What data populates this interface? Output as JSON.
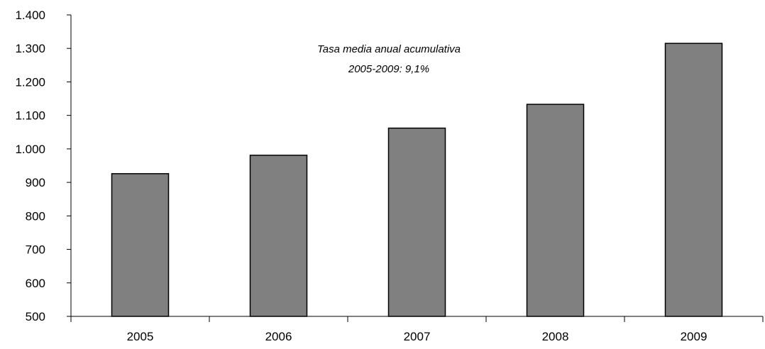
{
  "chart_data": {
    "type": "bar",
    "categories": [
      "2005",
      "2006",
      "2007",
      "2008",
      "2009"
    ],
    "values": [
      926,
      981,
      1062,
      1133,
      1315
    ],
    "ylim": [
      500,
      1400
    ],
    "yticks": [
      "500",
      "600",
      "700",
      "800",
      "900",
      "1.000",
      "1.100",
      "1.200",
      "1.300",
      "1.400"
    ],
    "ytick_values": [
      500,
      600,
      700,
      800,
      900,
      1000,
      1100,
      1200,
      1300,
      1400
    ],
    "annotation": [
      "Tasa media anual acumulativa",
      "2005-2009:  9,1%"
    ],
    "grid": false,
    "legend": "none",
    "colors": {
      "bar_fill": "#808080",
      "bar_stroke": "#000000",
      "axis": "#000000"
    }
  }
}
